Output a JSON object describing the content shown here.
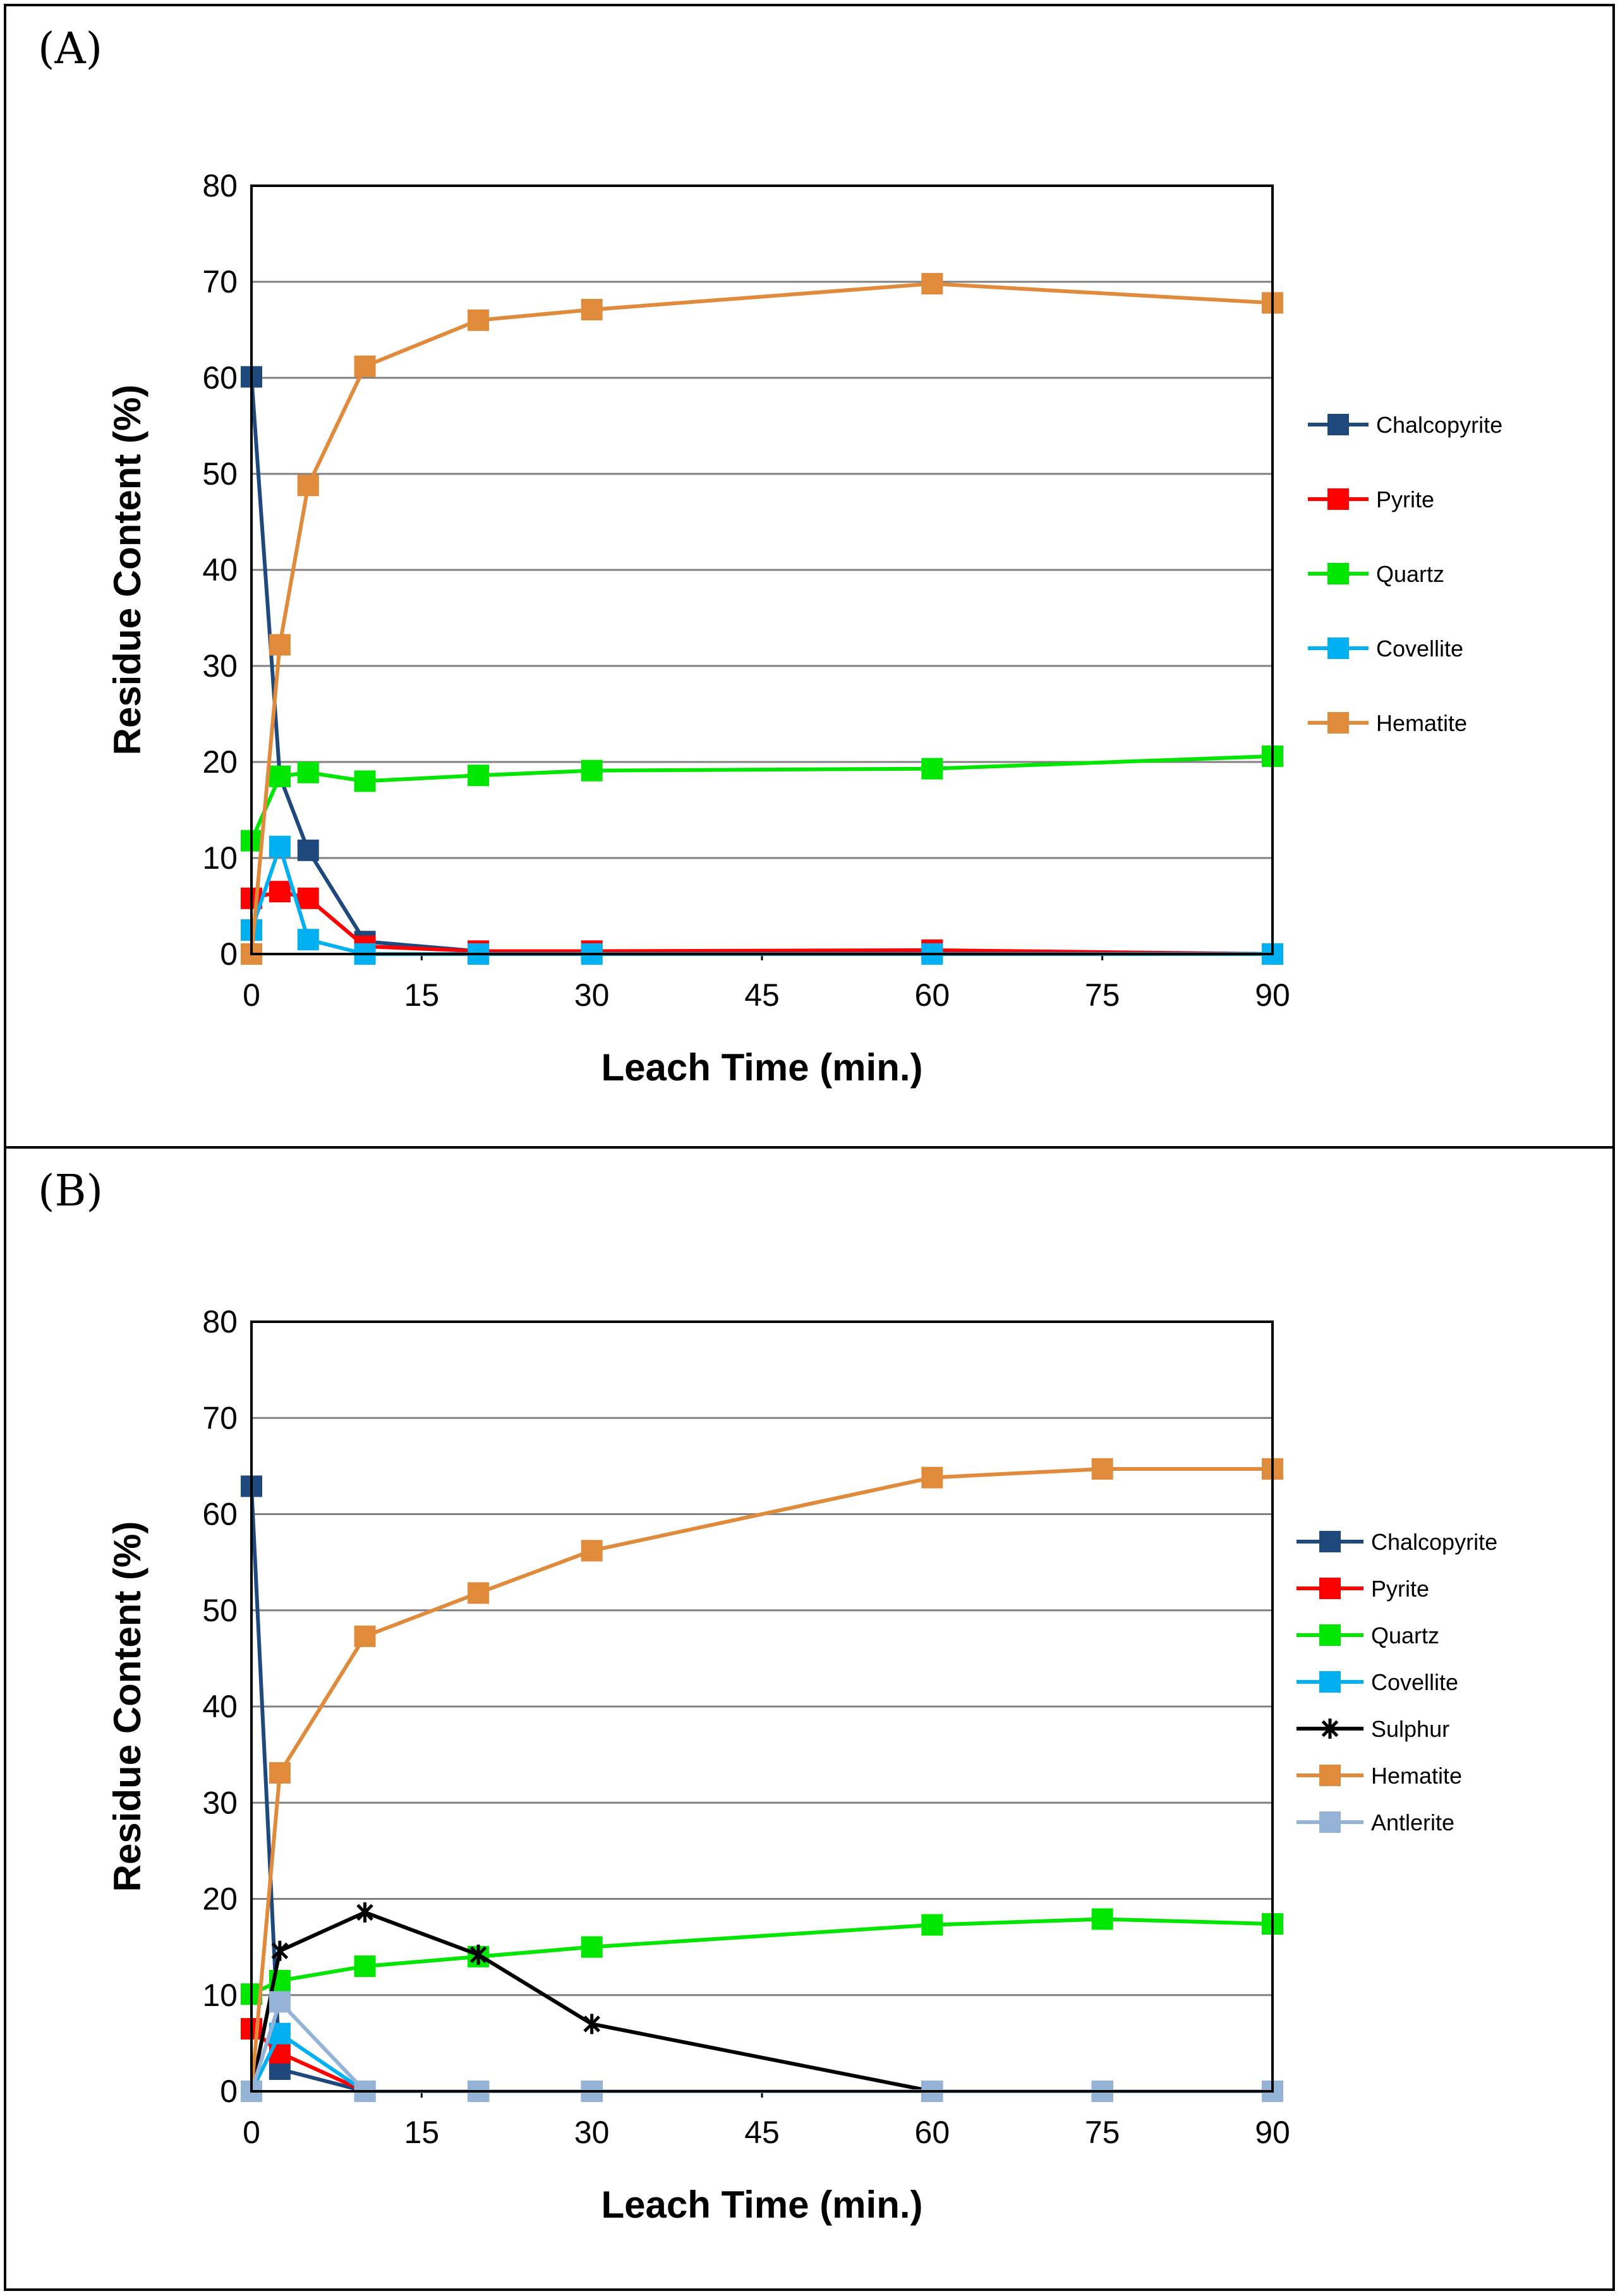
{
  "chart_data": [
    {
      "panel_label": "(A)",
      "type": "line",
      "xlabel": "Leach Time (min.)",
      "ylabel": "Residue Content (%)",
      "xlim": [
        0,
        90
      ],
      "ylim": [
        0,
        80
      ],
      "xticks": [
        0,
        15,
        30,
        45,
        60,
        75,
        90
      ],
      "yticks": [
        0,
        10,
        20,
        30,
        40,
        50,
        60,
        70,
        80
      ],
      "grid": "horizontal",
      "legend_position": "right",
      "series": [
        {
          "name": "Chalcopyrite",
          "color": "#1f497d",
          "marker": "square",
          "points": [
            [
              0,
              60.1
            ],
            [
              2.5,
              18.5
            ],
            [
              5,
              10.8
            ],
            [
              10,
              1.3
            ],
            [
              20,
              0.3
            ],
            [
              30,
              0.3
            ],
            [
              60,
              0.3
            ],
            [
              90,
              0.0
            ]
          ]
        },
        {
          "name": "Pyrite",
          "color": "#ff0000",
          "marker": "square",
          "points": [
            [
              0,
              5.8
            ],
            [
              2.5,
              6.5
            ],
            [
              5,
              5.8
            ],
            [
              10,
              0.8
            ],
            [
              20,
              0.3
            ],
            [
              30,
              0.3
            ],
            [
              60,
              0.4
            ],
            [
              90,
              0.0
            ]
          ]
        },
        {
          "name": "Quartz",
          "color": "#00e600",
          "marker": "square",
          "points": [
            [
              0,
              11.8
            ],
            [
              2.5,
              18.5
            ],
            [
              5,
              18.9
            ],
            [
              10,
              18.0
            ],
            [
              20,
              18.6
            ],
            [
              30,
              19.1
            ],
            [
              60,
              19.3
            ],
            [
              90,
              20.6
            ]
          ]
        },
        {
          "name": "Covellite",
          "color": "#00b0f0",
          "marker": "square",
          "points": [
            [
              0,
              2.5
            ],
            [
              2.5,
              11.2
            ],
            [
              5,
              1.5
            ],
            [
              10,
              0.0
            ],
            [
              20,
              0.0
            ],
            [
              30,
              0.0
            ],
            [
              60,
              0.0
            ],
            [
              90,
              0.0
            ]
          ]
        },
        {
          "name": "Hematite",
          "color": "#e08a3c",
          "marker": "square",
          "points": [
            [
              0,
              0.0
            ],
            [
              2.5,
              32.2
            ],
            [
              5,
              48.8
            ],
            [
              10,
              61.2
            ],
            [
              20,
              66.0
            ],
            [
              30,
              67.1
            ],
            [
              60,
              69.8
            ],
            [
              90,
              67.8
            ]
          ]
        }
      ]
    },
    {
      "panel_label": "(B)",
      "type": "line",
      "xlabel": "Leach Time (min.)",
      "ylabel": "Residue Content (%)",
      "xlim": [
        0,
        90
      ],
      "ylim": [
        0,
        80
      ],
      "xticks": [
        0,
        15,
        30,
        45,
        60,
        75,
        90
      ],
      "yticks": [
        0,
        10,
        20,
        30,
        40,
        50,
        60,
        70,
        80
      ],
      "grid": "horizontal",
      "legend_position": "right",
      "series": [
        {
          "name": "Chalcopyrite",
          "color": "#1f497d",
          "marker": "square",
          "points": [
            [
              0,
              62.9
            ],
            [
              2.5,
              2.3
            ],
            [
              10,
              0.0
            ],
            [
              20,
              0.0
            ],
            [
              30,
              0.0
            ],
            [
              60,
              0.0
            ],
            [
              75,
              0.0
            ],
            [
              90,
              0.0
            ]
          ]
        },
        {
          "name": "Pyrite",
          "color": "#ff0000",
          "marker": "square",
          "points": [
            [
              0,
              6.5
            ],
            [
              2.5,
              4.0
            ],
            [
              10,
              0.0
            ],
            [
              20,
              0.0
            ],
            [
              30,
              0.0
            ],
            [
              60,
              0.0
            ],
            [
              75,
              0.0
            ],
            [
              90,
              0.0
            ]
          ]
        },
        {
          "name": "Quartz",
          "color": "#00e600",
          "marker": "square",
          "points": [
            [
              0,
              10.1
            ],
            [
              2.5,
              11.5
            ],
            [
              10,
              13.0
            ],
            [
              20,
              14.0
            ],
            [
              30,
              15.0
            ],
            [
              60,
              17.3
            ],
            [
              75,
              17.9
            ],
            [
              90,
              17.4
            ]
          ]
        },
        {
          "name": "Covellite",
          "color": "#00b0f0",
          "marker": "square",
          "points": [
            [
              0,
              0.0
            ],
            [
              2.5,
              6.0
            ],
            [
              10,
              0.0
            ],
            [
              20,
              0.0
            ],
            [
              30,
              0.0
            ],
            [
              60,
              0.0
            ],
            [
              75,
              0.0
            ],
            [
              90,
              0.0
            ]
          ]
        },
        {
          "name": "Sulphur",
          "color": "#000000",
          "marker": "star",
          "points": [
            [
              0,
              0.0
            ],
            [
              2.5,
              14.6
            ],
            [
              10,
              18.6
            ],
            [
              20,
              14.2
            ],
            [
              30,
              7.0
            ],
            [
              60,
              0.0
            ],
            [
              75,
              0.0
            ],
            [
              90,
              0.0
            ]
          ]
        },
        {
          "name": "Hematite",
          "color": "#e08a3c",
          "marker": "square",
          "points": [
            [
              0,
              0.0
            ],
            [
              2.5,
              33.1
            ],
            [
              10,
              47.3
            ],
            [
              20,
              51.8
            ],
            [
              30,
              56.2
            ],
            [
              60,
              63.8
            ],
            [
              75,
              64.7
            ],
            [
              90,
              64.7
            ]
          ]
        },
        {
          "name": "Antlerite",
          "color": "#95b3d7",
          "marker": "square",
          "points": [
            [
              0,
              0.0
            ],
            [
              2.5,
              9.3
            ],
            [
              10,
              0.0
            ],
            [
              20,
              0.0
            ],
            [
              30,
              0.0
            ],
            [
              60,
              0.0
            ],
            [
              75,
              0.0
            ],
            [
              90,
              0.0
            ]
          ]
        }
      ]
    }
  ]
}
